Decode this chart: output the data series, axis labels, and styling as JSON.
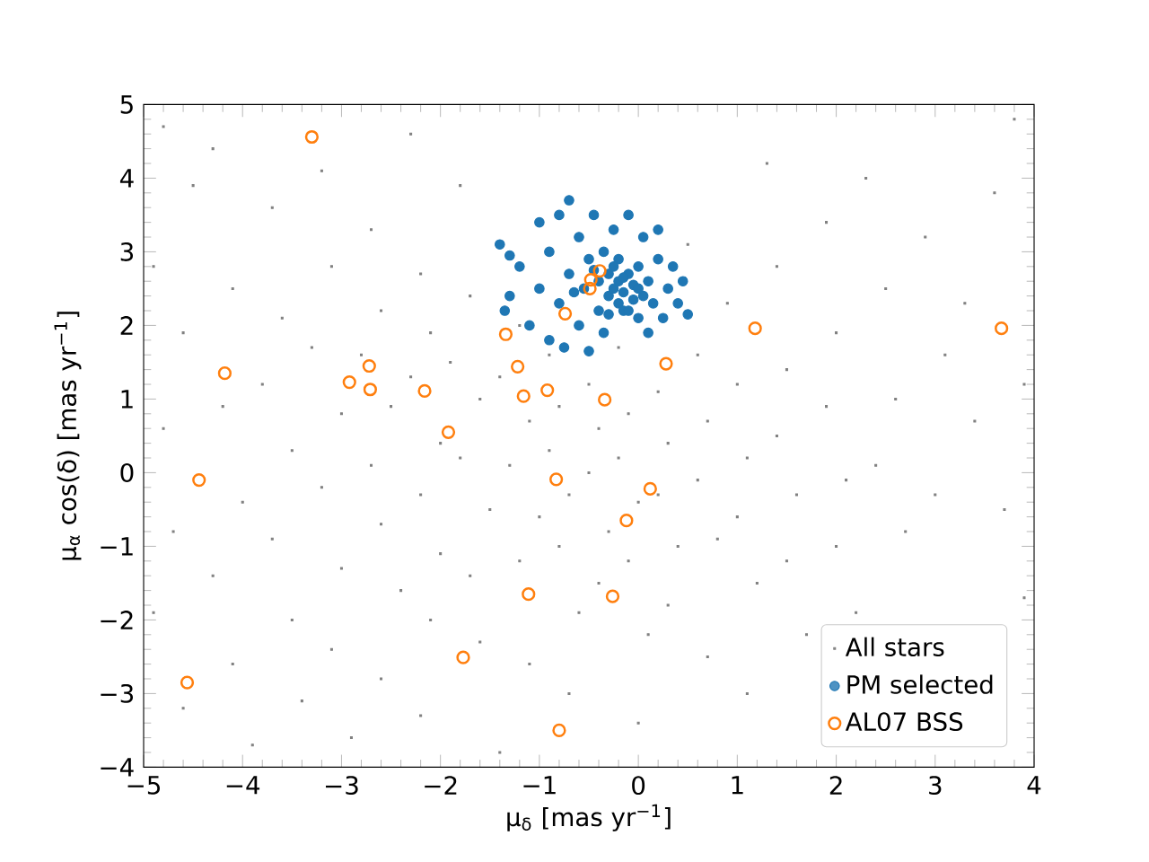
{
  "chart_data": {
    "type": "scatter",
    "xlabel": "μ$_{δ}$ [mas yr$^{−1}$]",
    "ylabel": "μ$_{α}$ cos(δ) [mas yr$^{−1}$]",
    "xlim": [
      -5,
      4
    ],
    "ylim": [
      -4,
      5
    ],
    "xticks": [
      {
        "value": -5,
        "label": "−5"
      },
      {
        "value": -4,
        "label": "−4"
      },
      {
        "value": -3,
        "label": "−3"
      },
      {
        "value": -2,
        "label": "−2"
      },
      {
        "value": -1,
        "label": "−1"
      },
      0,
      1,
      2,
      3,
      4
    ],
    "yticks": [
      {
        "value": -4,
        "label": "−4"
      },
      {
        "value": -3,
        "label": "−3"
      },
      {
        "value": -2,
        "label": "−2"
      },
      {
        "value": -1,
        "label": "−1"
      },
      0,
      1,
      2,
      3,
      4,
      5
    ],
    "grid": false,
    "legend": "bottom right",
    "series": [
      {
        "name": "All stars",
        "color": "#808080",
        "marker": "square",
        "x": [
          -4.8,
          -4.5,
          -4.9,
          -4.6,
          -4.8,
          -4.7,
          -4.9,
          -4.6,
          -4.3,
          -4.1,
          -4.2,
          -4.0,
          -4.3,
          -4.1,
          -3.9,
          -3.7,
          -3.6,
          -3.8,
          -3.5,
          -3.7,
          -3.5,
          -3.4,
          -3.2,
          -3.1,
          -3.3,
          -3.0,
          -3.2,
          -3.0,
          -3.1,
          -2.9,
          -2.7,
          -2.6,
          -2.8,
          -2.5,
          -2.7,
          -2.6,
          -2.4,
          -2.6,
          -2.3,
          -2.2,
          -2.1,
          -2.3,
          -2.0,
          -2.2,
          -2.0,
          -2.1,
          -2.2,
          -1.8,
          -1.7,
          -1.9,
          -1.6,
          -1.8,
          -1.5,
          -1.7,
          -1.6,
          -1.4,
          -1.2,
          -1.4,
          -1.1,
          -1.3,
          -1.0,
          -1.2,
          -1.1,
          -0.9,
          -0.8,
          -0.9,
          -0.7,
          -0.8,
          -0.6,
          -0.7,
          -0.5,
          -0.4,
          -0.5,
          -0.3,
          -0.4,
          -0.2,
          -0.1,
          -0.2,
          0.0,
          -0.1,
          0.1,
          0.0,
          0.2,
          0.3,
          0.2,
          0.4,
          0.3,
          0.5,
          0.6,
          0.7,
          0.6,
          0.8,
          0.7,
          0.9,
          1.0,
          1.1,
          1.0,
          1.2,
          1.1,
          1.3,
          1.4,
          1.5,
          1.4,
          1.6,
          1.5,
          1.7,
          1.9,
          2.0,
          1.9,
          2.1,
          2.0,
          2.2,
          2.3,
          2.5,
          2.6,
          2.4,
          2.7,
          2.9,
          3.1,
          3.0,
          3.3,
          3.4,
          3.6,
          3.7,
          3.9,
          3.8,
          3.9
        ],
        "values": [
          4.7,
          3.9,
          2.8,
          1.9,
          0.6,
          -0.8,
          -1.9,
          -3.2,
          4.4,
          2.5,
          0.9,
          -0.4,
          -1.4,
          -2.6,
          -3.7,
          3.6,
          2.1,
          1.2,
          0.3,
          -0.9,
          -2.0,
          -3.1,
          4.1,
          2.8,
          1.7,
          0.8,
          -0.2,
          -1.3,
          -2.4,
          -3.6,
          3.3,
          2.2,
          1.6,
          0.9,
          0.1,
          -0.7,
          -1.6,
          -2.8,
          4.6,
          2.7,
          1.9,
          1.3,
          0.4,
          -0.3,
          -1.1,
          -2.0,
          -3.3,
          3.9,
          2.4,
          1.5,
          1.0,
          0.2,
          -0.5,
          -1.4,
          -2.3,
          -3.8,
          2.0,
          1.3,
          0.7,
          0.1,
          -0.6,
          -1.2,
          -2.6,
          1.6,
          0.9,
          0.3,
          -0.3,
          -1.0,
          -1.9,
          -3.0,
          1.2,
          0.6,
          0.0,
          -0.8,
          -1.5,
          1.7,
          0.8,
          0.2,
          -0.4,
          -1.2,
          -2.2,
          -3.4,
          1.1,
          0.4,
          -0.3,
          -1.0,
          -1.8,
          3.1,
          1.6,
          0.7,
          -0.1,
          -0.9,
          -2.5,
          2.3,
          1.2,
          0.2,
          -0.6,
          -1.5,
          -3.0,
          4.2,
          2.8,
          1.4,
          0.5,
          -0.3,
          -1.2,
          -2.2,
          3.4,
          1.9,
          0.9,
          -0.1,
          -1.0,
          -1.9,
          4.0,
          2.5,
          1.0,
          0.1,
          -0.8,
          3.2,
          1.6,
          -0.3,
          2.3,
          0.7,
          3.8,
          -0.5,
          1.2,
          4.8,
          -1.7
        ]
      },
      {
        "name": "PM selected",
        "color": "#1f77b4",
        "marker": "circle",
        "x": [
          -1.4,
          -1.3,
          -1.35,
          -1.2,
          -1.1,
          -1.0,
          -1.0,
          -0.9,
          -0.9,
          -0.8,
          -0.8,
          -0.75,
          -0.7,
          -0.7,
          -0.6,
          -0.6,
          -0.55,
          -0.5,
          -0.5,
          -0.45,
          -0.4,
          -0.4,
          -0.35,
          -0.35,
          -0.3,
          -0.3,
          -0.25,
          -0.25,
          -0.2,
          -0.2,
          -0.2,
          -0.15,
          -0.15,
          -0.1,
          -0.1,
          -0.05,
          -0.05,
          0.0,
          0.0,
          0.05,
          0.05,
          0.1,
          0.1,
          0.15,
          0.2,
          0.2,
          0.25,
          0.3,
          0.35,
          0.4,
          0.45,
          0.5,
          -1.3,
          -0.65,
          -0.45,
          -0.3,
          -0.1,
          0.0,
          -0.25,
          -0.15
        ],
        "values": [
          3.1,
          2.4,
          2.2,
          2.8,
          2.0,
          3.4,
          2.5,
          1.8,
          3.0,
          2.3,
          3.5,
          1.7,
          2.7,
          3.7,
          2.0,
          3.2,
          2.5,
          1.65,
          2.9,
          3.5,
          2.2,
          2.6,
          3.0,
          1.9,
          2.4,
          2.7,
          2.5,
          3.3,
          2.3,
          2.6,
          2.9,
          2.2,
          2.45,
          2.7,
          3.5,
          2.35,
          2.55,
          2.1,
          2.8,
          2.4,
          3.2,
          2.6,
          1.9,
          2.3,
          2.9,
          3.3,
          2.1,
          2.5,
          2.8,
          2.3,
          2.6,
          2.15,
          2.95,
          2.45,
          2.75,
          2.15,
          2.2,
          2.5,
          2.8,
          2.65
        ]
      },
      {
        "name": "AL07 BSS",
        "color": "#ff7f0e",
        "marker": "circle",
        "x": [
          -3.3,
          1.18,
          3.67,
          -4.18,
          -2.72,
          -2.92,
          -2.71,
          -2.16,
          -1.34,
          -1.22,
          -1.16,
          -0.92,
          -0.34,
          0.28,
          -0.74,
          -0.49,
          -0.48,
          -0.39,
          -1.92,
          -4.44,
          -0.83,
          0.12,
          -0.12,
          -1.11,
          -0.26,
          -1.77,
          -4.56,
          -0.8
        ],
        "values": [
          4.56,
          1.96,
          1.96,
          1.35,
          1.45,
          1.23,
          1.13,
          1.11,
          1.88,
          1.44,
          1.04,
          1.12,
          0.99,
          1.48,
          2.16,
          2.5,
          2.62,
          2.74,
          0.55,
          -0.1,
          -0.09,
          -0.22,
          -0.65,
          -1.65,
          -1.68,
          -2.51,
          -2.85,
          -3.5
        ]
      }
    ]
  }
}
